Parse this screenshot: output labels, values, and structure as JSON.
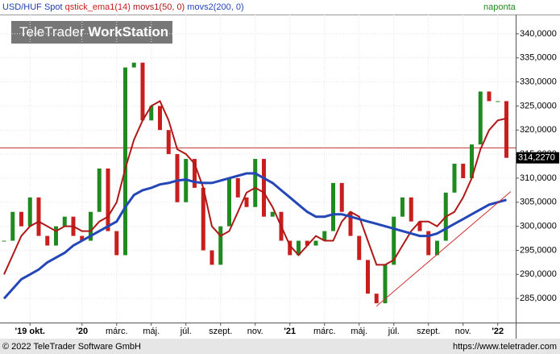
{
  "chart_data": {
    "type": "candlestick",
    "title_parts": [
      "USD/HUF Spot",
      "qstick_ema1(14)"
    ],
    "period": "naponta",
    "logo": {
      "brand": "TeleTrader",
      "product": "WorkStation"
    },
    "footer_left": "© 2022 TeleTrader Software GmbH",
    "footer_right": "https://www.teletrader.com",
    "categories": [
      null,
      null,
      null,
      "'19 okt.",
      null,
      null,
      null,
      null,
      null,
      "'20",
      null,
      null,
      null,
      "márc.",
      null,
      null,
      null,
      "máj.",
      null,
      null,
      null,
      "júl.",
      null,
      null,
      null,
      "szept.",
      null,
      null,
      null,
      "nov.",
      null,
      null,
      null,
      "'21",
      null,
      null,
      null,
      "márc.",
      null,
      null,
      null,
      "máj.",
      null,
      null,
      null,
      "júl.",
      null,
      null,
      null,
      "szept.",
      null,
      null,
      null,
      "nov.",
      null,
      null,
      null,
      "'22",
      null
    ],
    "up_color": "#1f8a1f",
    "down_color": "#c81e1e",
    "series": [
      {
        "name": "USD/HUF Spot",
        "color": "#1f3fb0",
        "values": [
          297,
          303,
          300,
          306,
          298,
          296,
          300,
          302,
          298,
          297,
          303,
          312,
          299,
          294,
          333,
          334,
          322,
          325,
          320,
          315,
          305,
          314,
          308,
          295,
          292,
          300,
          310,
          306,
          304,
          314,
          302,
          303,
          297,
          294,
          297,
          296,
          297,
          299,
          309,
          303,
          298,
          293,
          286,
          284,
          292,
          302,
          306,
          301,
          299,
          294,
          297,
          307,
          313,
          310,
          317,
          328,
          326,
          326,
          314.227
        ]
      },
      {
        "name": "movs1(50, 0)",
        "color": "#b01818",
        "values": [
          290,
          294,
          298,
          300,
          301,
          300,
          299,
          300,
          300,
          299,
          299,
          301,
          302,
          305,
          312,
          318,
          322,
          325,
          326,
          322,
          316,
          315,
          313,
          308,
          300,
          298,
          299,
          303,
          307,
          308,
          307,
          304,
          300,
          296,
          294,
          296,
          298,
          297,
          297,
          301,
          303,
          302,
          297,
          292,
          292,
          293,
          296,
          299,
          301,
          301,
          300,
          302,
          303,
          306,
          310,
          316,
          320,
          322,
          322.4
        ]
      },
      {
        "name": "movs2(200, 0)",
        "color": "#2447b8",
        "values": [
          285,
          287,
          289,
          290,
          291,
          292.5,
          293.5,
          294.5,
          296,
          297,
          298,
          299,
          300,
          301,
          304,
          306.5,
          307.5,
          308,
          308.7,
          309,
          309.5,
          309.7,
          309.2,
          309,
          309,
          309.5,
          310,
          310.5,
          311,
          311,
          310,
          309,
          307.5,
          306,
          304.5,
          303,
          302,
          302,
          302.5,
          302.5,
          302,
          301.5,
          301,
          300.5,
          300,
          299.5,
          299,
          298.5,
          298,
          298,
          298.5,
          299.5,
          300.5,
          301.5,
          302.5,
          303.5,
          304.5,
          305,
          305.5
        ]
      }
    ],
    "last_price": {
      "value": 314.227,
      "label": "314,2270"
    },
    "horizontal_line": {
      "value": 316.3,
      "color": "#c03030"
    },
    "trend_line": {
      "x": [
        43,
        58.5
      ],
      "y": [
        283.4,
        307.2
      ],
      "color": "#d03030"
    },
    "ylim": [
      280,
      344
    ],
    "yticks": [
      {
        "value": 285,
        "label": "285,0000"
      },
      {
        "value": 290,
        "label": "290,0000"
      },
      {
        "value": 295,
        "label": "295,0000"
      },
      {
        "value": 300,
        "label": "300,0000"
      },
      {
        "value": 305,
        "label": "305,0000"
      },
      {
        "value": 310,
        "label": "310,0000"
      },
      {
        "value": 315,
        "label": "315,0000"
      },
      {
        "value": 320,
        "label": "320,0000"
      },
      {
        "value": 325,
        "label": "325,0000"
      },
      {
        "value": 330,
        "label": "330,0000"
      },
      {
        "value": 335,
        "label": "335,0000"
      },
      {
        "value": 340,
        "label": "340,0000"
      }
    ],
    "grid": true
  }
}
